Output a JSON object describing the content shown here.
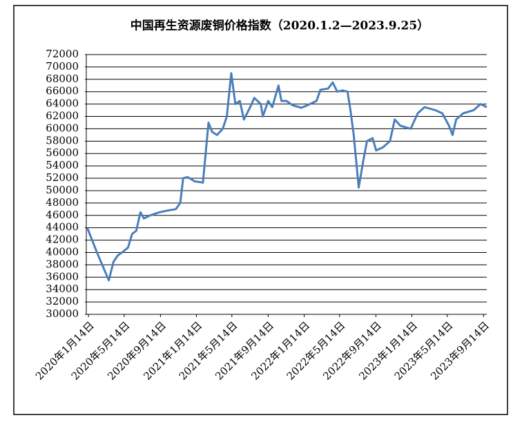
{
  "chart_data": {
    "type": "line",
    "title": "中国再生资源废铜价格指数（2020.1.2—2023.9.25）",
    "x": [
      "2020-01-10",
      "2020-02-10",
      "2020-03-23",
      "2020-04-08",
      "2020-04-22",
      "2020-05-12",
      "2020-05-27",
      "2020-06-10",
      "2020-06-24",
      "2020-07-08",
      "2020-07-20",
      "2020-08-10",
      "2020-09-10",
      "2020-10-10",
      "2020-11-05",
      "2020-11-20",
      "2020-11-30",
      "2020-12-15",
      "2021-01-08",
      "2021-02-05",
      "2021-02-24",
      "2021-03-08",
      "2021-03-25",
      "2021-04-13",
      "2021-04-27",
      "2021-05-12",
      "2021-05-26",
      "2021-06-10",
      "2021-06-24",
      "2021-07-15",
      "2021-07-29",
      "2021-08-20",
      "2021-08-27",
      "2021-09-14",
      "2021-09-28",
      "2021-10-19",
      "2021-10-29",
      "2021-11-15",
      "2021-12-06",
      "2022-01-05",
      "2022-01-25",
      "2022-02-25",
      "2022-03-10",
      "2022-04-05",
      "2022-04-21",
      "2022-05-06",
      "2022-05-25",
      "2022-06-10",
      "2022-06-20",
      "2022-07-01",
      "2022-07-18",
      "2022-08-03",
      "2022-08-15",
      "2022-09-03",
      "2022-09-15",
      "2022-10-08",
      "2022-11-01",
      "2022-11-17",
      "2022-12-06",
      "2023-01-10",
      "2023-02-03",
      "2023-02-26",
      "2023-04-04",
      "2023-04-27",
      "2023-05-20",
      "2023-06-01",
      "2023-06-13",
      "2023-07-07",
      "2023-08-11",
      "2023-09-04",
      "2023-09-25"
    ],
    "values": [
      44000,
      40200,
      35500,
      38500,
      39500,
      40200,
      40800,
      43000,
      43500,
      46500,
      45500,
      46000,
      46500,
      46800,
      47000,
      48000,
      52000,
      52200,
      51500,
      51300,
      61000,
      59500,
      59000,
      60000,
      62000,
      69000,
      64000,
      64500,
      61500,
      63500,
      65000,
      64000,
      62000,
      64500,
      63500,
      67000,
      64500,
      64500,
      63800,
      63400,
      63800,
      64500,
      66300,
      66500,
      67500,
      66000,
      66200,
      66000,
      63000,
      59000,
      50500,
      55000,
      58000,
      58500,
      56500,
      57000,
      58000,
      61500,
      60500,
      60000,
      62500,
      63500,
      63000,
      62500,
      60500,
      59000,
      61500,
      62500,
      63000,
      64000,
      63500
    ],
    "color": "#4a7ebb",
    "xlim": [
      "2020-01-02",
      "2023-09-25"
    ],
    "xticks": [
      {
        "value": "2020-01-14",
        "label": "2020年1月14日"
      },
      {
        "value": "2020-05-14",
        "label": "2020年5月14日"
      },
      {
        "value": "2020-09-14",
        "label": "2020年9月14日"
      },
      {
        "value": "2021-01-14",
        "label": "2021年1月14日"
      },
      {
        "value": "2021-05-14",
        "label": "2021年5月14日"
      },
      {
        "value": "2021-09-14",
        "label": "2021年9月14日"
      },
      {
        "value": "2022-01-14",
        "label": "2022年1月14日"
      },
      {
        "value": "2022-05-14",
        "label": "2022年5月14日"
      },
      {
        "value": "2022-09-14",
        "label": "2022年9月14日"
      },
      {
        "value": "2023-01-14",
        "label": "2023年1月14日"
      },
      {
        "value": "2023-05-14",
        "label": "2023年5月14日"
      },
      {
        "value": "2023-09-14",
        "label": "2023年9月14日"
      }
    ],
    "ylim": [
      30000,
      72000
    ],
    "yticks": [
      30000,
      32000,
      34000,
      36000,
      38000,
      40000,
      42000,
      44000,
      46000,
      48000,
      50000,
      52000,
      54000,
      56000,
      58000,
      60000,
      62000,
      64000,
      66000,
      68000,
      70000,
      72000
    ],
    "grid": true
  }
}
